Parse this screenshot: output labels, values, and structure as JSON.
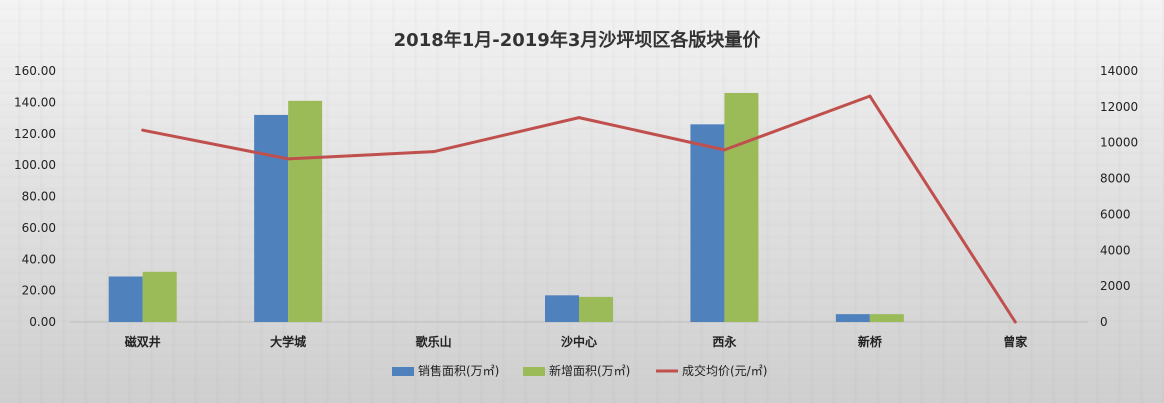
{
  "chart_data": {
    "type": "bar+line",
    "title": "2018年1月-2019年3月沙坪坝区各版块量价",
    "categories": [
      "磁双井",
      "大学城",
      "歌乐山",
      "沙中心",
      "西永",
      "新桥",
      "曾家"
    ],
    "y_left": {
      "ylim": [
        0,
        160
      ],
      "ticks": [
        "0.00",
        "20.00",
        "40.00",
        "60.00",
        "80.00",
        "100.00",
        "120.00",
        "140.00",
        "160.00"
      ]
    },
    "y_right": {
      "ylim": [
        0,
        14000
      ],
      "ticks": [
        "0",
        "2000",
        "4000",
        "6000",
        "8000",
        "10000",
        "12000",
        "14000"
      ]
    },
    "series": [
      {
        "name": "销售面积(万㎡)",
        "type": "bar",
        "axis": "left",
        "color": "#4f81bd",
        "values": [
          29,
          132,
          0,
          17,
          126,
          5,
          0
        ]
      },
      {
        "name": "新增面积(万㎡)",
        "type": "bar",
        "axis": "left",
        "color": "#9bbb59",
        "values": [
          32,
          141,
          0,
          16,
          146,
          5,
          0
        ]
      },
      {
        "name": "成交均价(元/㎡)",
        "type": "line",
        "axis": "right",
        "color": "#c0504d",
        "values": [
          10700,
          9100,
          9500,
          11400,
          9600,
          12600,
          0
        ]
      }
    ],
    "legend_position": "bottom",
    "grid": false
  }
}
